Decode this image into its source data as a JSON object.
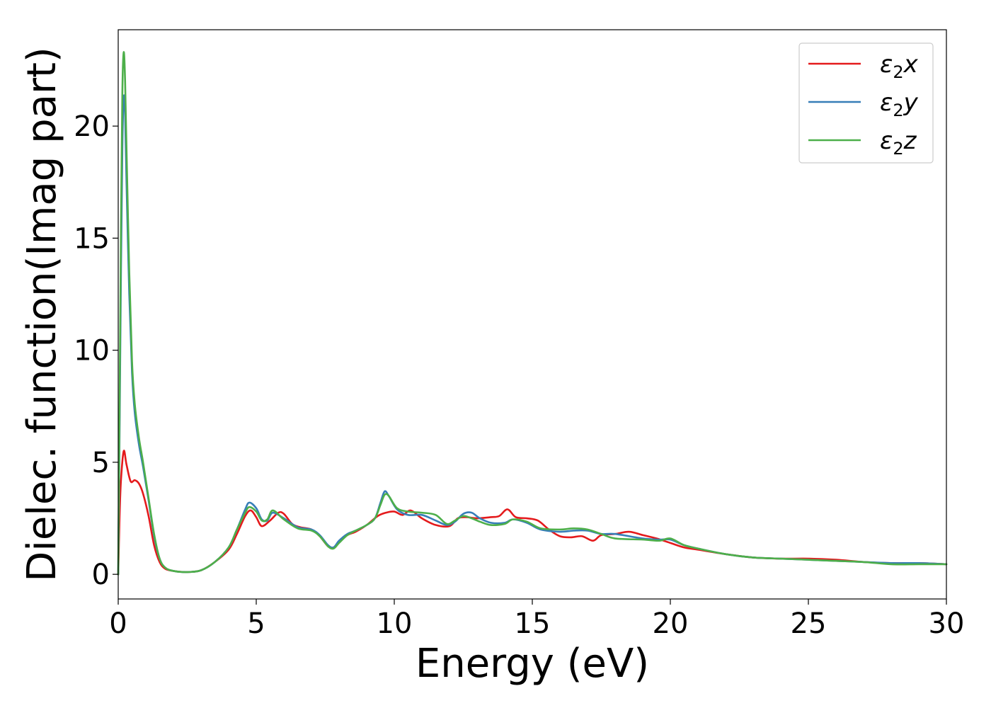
{
  "chart_data": {
    "type": "line",
    "title": "",
    "xlabel": "Energy (eV)",
    "ylabel": "Dielec. function(Imag part)",
    "xlim": [
      0,
      30
    ],
    "ylim": [
      -1.1,
      24.3
    ],
    "xticks": [
      0,
      5,
      10,
      15,
      20,
      25,
      30
    ],
    "yticks": [
      0,
      5,
      10,
      15,
      20
    ],
    "grid": false,
    "legend_position": "top-right",
    "series": [
      {
        "name": "ε₂x",
        "legend_base": "ε",
        "legend_sub": "2",
        "legend_suffix": "x",
        "color": "#e41a1c",
        "x": [
          0,
          0.05,
          0.1,
          0.2,
          0.3,
          0.45,
          0.6,
          0.75,
          0.9,
          1.1,
          1.3,
          1.5,
          1.7,
          2.0,
          2.5,
          3.0,
          3.5,
          4.0,
          4.3,
          4.6,
          4.8,
          5.0,
          5.2,
          5.5,
          5.8,
          6.0,
          6.3,
          6.6,
          7.0,
          7.3,
          7.6,
          7.8,
          8.0,
          8.3,
          8.6,
          9.0,
          9.4,
          9.7,
          10.0,
          10.3,
          10.6,
          11.0,
          11.5,
          12.0,
          12.3,
          12.6,
          13.0,
          13.5,
          13.8,
          14.1,
          14.4,
          14.8,
          15.2,
          15.6,
          16.0,
          16.4,
          16.8,
          17.2,
          17.5,
          18.0,
          18.5,
          19.0,
          19.5,
          20.0,
          20.5,
          21.0,
          22.0,
          23.0,
          24.0,
          25.0,
          26.0,
          27.0,
          28.0,
          29.0,
          30.0
        ],
        "values": [
          0,
          2.6,
          4.2,
          5.5,
          4.9,
          4.15,
          4.2,
          4.05,
          3.6,
          2.6,
          1.3,
          0.55,
          0.25,
          0.15,
          0.1,
          0.18,
          0.55,
          1.1,
          1.8,
          2.6,
          2.85,
          2.55,
          2.15,
          2.4,
          2.75,
          2.7,
          2.25,
          2.1,
          2.0,
          1.7,
          1.25,
          1.2,
          1.45,
          1.75,
          1.9,
          2.2,
          2.6,
          2.75,
          2.8,
          2.65,
          2.85,
          2.5,
          2.2,
          2.15,
          2.5,
          2.55,
          2.5,
          2.55,
          2.6,
          2.9,
          2.55,
          2.5,
          2.4,
          2.0,
          1.7,
          1.65,
          1.7,
          1.5,
          1.75,
          1.8,
          1.9,
          1.75,
          1.6,
          1.4,
          1.2,
          1.1,
          0.9,
          0.75,
          0.7,
          0.7,
          0.65,
          0.55,
          0.5,
          0.5,
          0.45
        ]
      },
      {
        "name": "ε₂y",
        "legend_base": "ε",
        "legend_sub": "2",
        "legend_suffix": "y",
        "color": "#377eb8",
        "x": [
          0,
          0.05,
          0.1,
          0.15,
          0.2,
          0.25,
          0.3,
          0.4,
          0.5,
          0.6,
          0.75,
          0.9,
          1.1,
          1.3,
          1.5,
          1.7,
          2.0,
          2.5,
          3.0,
          3.5,
          4.0,
          4.3,
          4.6,
          4.75,
          5.0,
          5.2,
          5.4,
          5.6,
          6.0,
          6.5,
          7.0,
          7.3,
          7.6,
          7.8,
          8.0,
          8.3,
          8.6,
          9.0,
          9.3,
          9.5,
          9.65,
          9.8,
          10.1,
          10.5,
          11.0,
          11.5,
          11.9,
          12.2,
          12.5,
          12.8,
          13.1,
          13.5,
          14.0,
          14.3,
          14.8,
          15.3,
          16.0,
          16.5,
          17.0,
          17.5,
          18.0,
          19.0,
          19.6,
          20.0,
          20.5,
          21.0,
          22.0,
          23.0,
          24.0,
          25.0,
          26.0,
          27.0,
          28.0,
          29.0,
          30.0
        ],
        "values": [
          0,
          6.5,
          13.5,
          19.0,
          21.3,
          20.5,
          17.5,
          12.5,
          9.0,
          7.2,
          5.8,
          4.8,
          3.3,
          1.7,
          0.7,
          0.3,
          0.15,
          0.1,
          0.18,
          0.55,
          1.2,
          2.0,
          2.9,
          3.2,
          2.95,
          2.45,
          2.4,
          2.75,
          2.5,
          2.1,
          2.0,
          1.75,
          1.3,
          1.2,
          1.5,
          1.8,
          1.95,
          2.2,
          2.5,
          3.2,
          3.7,
          3.5,
          2.9,
          2.65,
          2.65,
          2.4,
          2.2,
          2.35,
          2.7,
          2.75,
          2.5,
          2.3,
          2.3,
          2.45,
          2.3,
          2.0,
          1.9,
          1.95,
          1.95,
          1.8,
          1.8,
          1.6,
          1.55,
          1.55,
          1.3,
          1.15,
          0.9,
          0.75,
          0.7,
          0.65,
          0.6,
          0.55,
          0.5,
          0.5,
          0.45
        ]
      },
      {
        "name": "ε₂z",
        "legend_base": "ε",
        "legend_sub": "2",
        "legend_suffix": "z",
        "color": "#4daf4a",
        "x": [
          0,
          0.05,
          0.1,
          0.15,
          0.2,
          0.25,
          0.3,
          0.4,
          0.5,
          0.6,
          0.75,
          0.9,
          1.1,
          1.3,
          1.5,
          1.7,
          2.0,
          2.5,
          3.0,
          3.5,
          4.0,
          4.3,
          4.6,
          4.75,
          5.0,
          5.2,
          5.4,
          5.6,
          6.0,
          6.5,
          7.0,
          7.3,
          7.6,
          7.8,
          8.0,
          8.3,
          8.6,
          9.0,
          9.3,
          9.5,
          9.65,
          9.8,
          10.1,
          10.5,
          11.0,
          11.5,
          11.9,
          12.2,
          12.5,
          12.8,
          13.1,
          13.5,
          14.0,
          14.3,
          14.8,
          15.3,
          16.0,
          16.5,
          17.0,
          17.5,
          18.0,
          19.0,
          19.6,
          20.0,
          20.5,
          21.0,
          22.0,
          23.0,
          24.0,
          25.0,
          26.0,
          27.0,
          28.0,
          29.0,
          30.0
        ],
        "values": [
          0,
          7.5,
          15.5,
          21.5,
          23.3,
          22.0,
          19.0,
          13.5,
          9.5,
          7.6,
          6.1,
          5.0,
          3.4,
          1.8,
          0.7,
          0.3,
          0.15,
          0.1,
          0.18,
          0.55,
          1.2,
          2.0,
          2.75,
          3.0,
          2.8,
          2.4,
          2.45,
          2.85,
          2.45,
          2.05,
          1.95,
          1.7,
          1.25,
          1.15,
          1.4,
          1.75,
          1.95,
          2.2,
          2.5,
          3.1,
          3.55,
          3.5,
          2.95,
          2.8,
          2.75,
          2.65,
          2.25,
          2.4,
          2.6,
          2.5,
          2.35,
          2.2,
          2.25,
          2.45,
          2.35,
          2.05,
          2.0,
          2.05,
          2.0,
          1.8,
          1.6,
          1.55,
          1.5,
          1.6,
          1.3,
          1.15,
          0.9,
          0.75,
          0.7,
          0.65,
          0.6,
          0.55,
          0.45,
          0.45,
          0.45
        ]
      }
    ]
  }
}
